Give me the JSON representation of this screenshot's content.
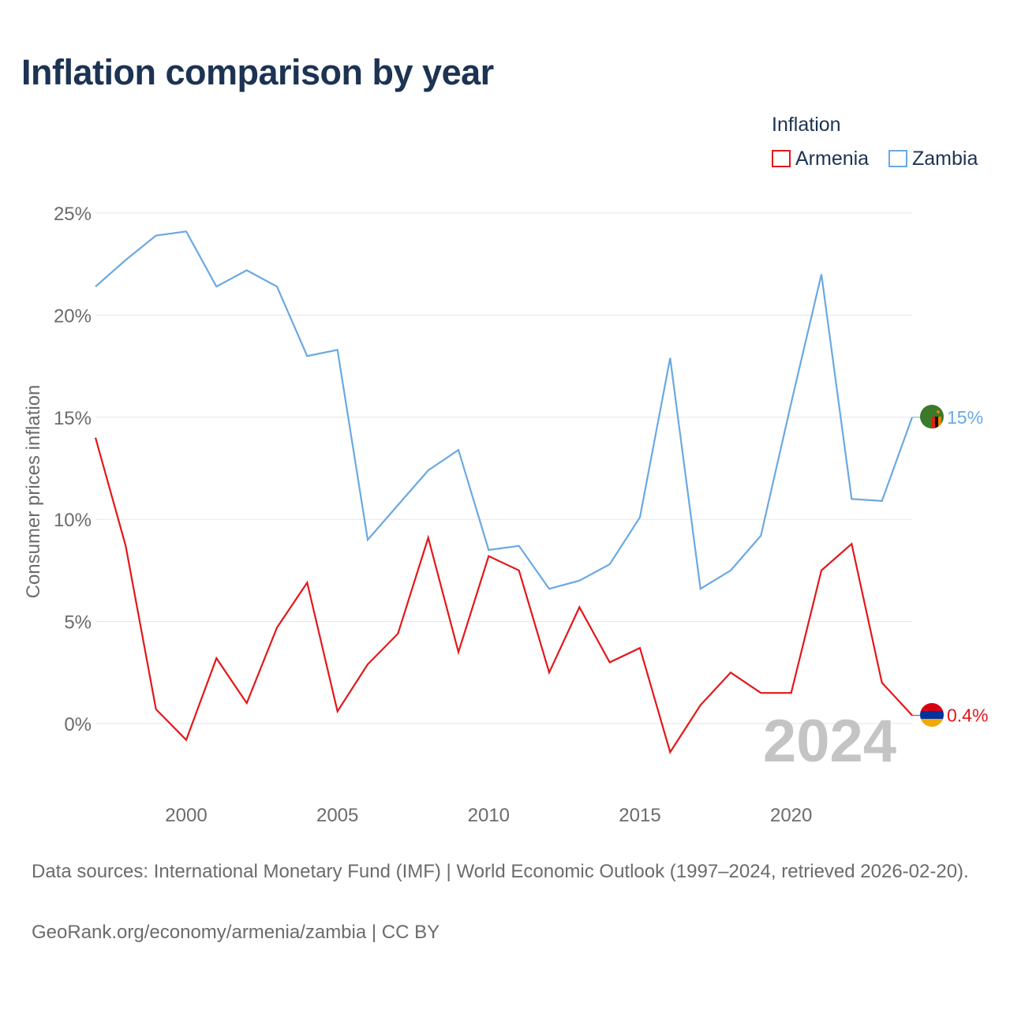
{
  "title": "Inflation comparison by year",
  "legend": {
    "title": "Inflation",
    "items": [
      {
        "label": "Armenia",
        "color": "#e3171a"
      },
      {
        "label": "Zambia",
        "color": "#6aa9e2"
      }
    ]
  },
  "year_watermark": "2024",
  "footer": {
    "sources": "Data sources: International Monetary Fund (IMF) | World Economic Outlook (1997–2024, retrieved 2026-02-20).",
    "credit": "GeoRank.org/economy/armenia/zambia | CC BY"
  },
  "chart_data": {
    "type": "line",
    "title": "Inflation comparison by year",
    "xlabel": "",
    "ylabel": "Consumer prices inflation",
    "xlim": [
      1997,
      2024
    ],
    "ylim": [
      -3,
      26
    ],
    "x_ticks": [
      2000,
      2005,
      2010,
      2015,
      2020
    ],
    "x_tick_labels": [
      "2000",
      "2005",
      "2010",
      "2015",
      "2020"
    ],
    "y_ticks": [
      0,
      5,
      10,
      15,
      20,
      25
    ],
    "y_tick_labels": [
      "0%",
      "5%",
      "10%",
      "15%",
      "20%",
      "25%"
    ],
    "grid": true,
    "x": [
      1997,
      1998,
      1999,
      2000,
      2001,
      2002,
      2003,
      2004,
      2005,
      2006,
      2007,
      2008,
      2009,
      2010,
      2011,
      2012,
      2013,
      2014,
      2015,
      2016,
      2017,
      2018,
      2019,
      2020,
      2021,
      2022,
      2023,
      2024
    ],
    "series": [
      {
        "name": "Armenia",
        "color": "#e3171a",
        "end_label": "0.4%",
        "values": [
          14.0,
          8.7,
          0.7,
          -0.8,
          3.2,
          1.0,
          4.7,
          6.9,
          0.6,
          2.9,
          4.4,
          9.1,
          3.5,
          8.2,
          7.5,
          2.5,
          5.7,
          3.0,
          3.7,
          -1.4,
          0.9,
          2.5,
          1.5,
          1.5,
          7.5,
          8.8,
          2.0,
          0.4
        ]
      },
      {
        "name": "Zambia",
        "color": "#6aa9e2",
        "end_label": "15%",
        "values": [
          21.4,
          22.7,
          23.9,
          24.1,
          21.4,
          22.2,
          21.4,
          18.0,
          18.3,
          9.0,
          10.7,
          12.4,
          13.4,
          8.5,
          8.7,
          6.6,
          7.0,
          7.8,
          10.1,
          17.9,
          6.6,
          7.5,
          9.2,
          15.7,
          22.0,
          11.0,
          10.9,
          15.0
        ]
      }
    ]
  }
}
